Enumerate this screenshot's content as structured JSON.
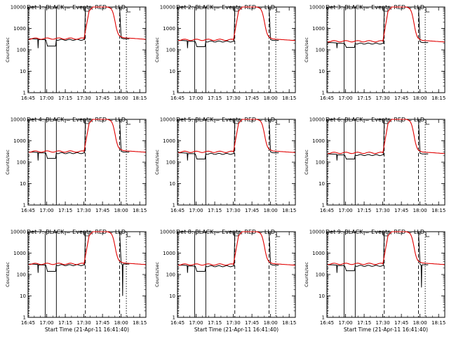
{
  "figure": {
    "background": "#ffffff",
    "axis_color": "#000000",
    "events_color": "#000000",
    "lld_color": "#e00000",
    "ylabel": "Counts/sec",
    "xlabel": "Start Time (21-Apr-11 16:41:40)"
  },
  "chart_data": [
    {
      "type": "line",
      "title": "Det 1: BLACK = Events, RED = LLD",
      "show_xlabel": false,
      "ylim": [
        1,
        10000
      ],
      "yscale": "log",
      "x_ticks": [
        "16:45",
        "17:00",
        "17:15",
        "17:30",
        "17:45",
        "18:00",
        "18:15"
      ],
      "y_ticks": [
        "1",
        "10",
        "100",
        "1000",
        "10000"
      ],
      "events_baseline": 300,
      "lld_baseline": 320,
      "dip_level": 150,
      "spike_level": null
    },
    {
      "type": "line",
      "title": "Det 2: BLACK = Events, RED = LLD",
      "show_xlabel": false,
      "ylim": [
        1,
        10000
      ],
      "yscale": "log",
      "x_ticks": [
        "16:45",
        "17:00",
        "17:15",
        "17:30",
        "17:45",
        "18:00",
        "18:15"
      ],
      "y_ticks": [
        "1",
        "10",
        "100",
        "1000",
        "10000"
      ],
      "events_baseline": 250,
      "lld_baseline": 280,
      "dip_level": 140,
      "spike_level": null
    },
    {
      "type": "line",
      "title": "Det 3: BLACK = Events, RED = LLD",
      "show_xlabel": false,
      "ylim": [
        1,
        10000
      ],
      "yscale": "log",
      "x_ticks": [
        "16:45",
        "17:00",
        "17:15",
        "17:30",
        "17:45",
        "18:00",
        "18:15"
      ],
      "y_ticks": [
        "1",
        "10",
        "100",
        "1000",
        "10000"
      ],
      "events_baseline": 200,
      "lld_baseline": 240,
      "dip_level": 130,
      "spike_level": null
    },
    {
      "type": "line",
      "title": "Det 4: BLACK = Events, RED = LLD",
      "show_xlabel": false,
      "ylim": [
        1,
        10000
      ],
      "yscale": "log",
      "x_ticks": [
        "16:45",
        "17:00",
        "17:15",
        "17:30",
        "17:45",
        "18:00",
        "18:15"
      ],
      "y_ticks": [
        "1",
        "10",
        "100",
        "1000",
        "10000"
      ],
      "events_baseline": 270,
      "lld_baseline": 300,
      "dip_level": 150,
      "spike_level": null
    },
    {
      "type": "line",
      "title": "Det 5: BLACK = Events, RED = LLD",
      "show_xlabel": false,
      "ylim": [
        1,
        10000
      ],
      "yscale": "log",
      "x_ticks": [
        "16:45",
        "17:00",
        "17:15",
        "17:30",
        "17:45",
        "18:00",
        "18:15"
      ],
      "y_ticks": [
        "1",
        "10",
        "100",
        "1000",
        "10000"
      ],
      "events_baseline": 250,
      "lld_baseline": 290,
      "dip_level": 140,
      "spike_level": null
    },
    {
      "type": "line",
      "title": "Det 6: BLACK = Events, RED = LLD",
      "show_xlabel": false,
      "ylim": [
        1,
        10000
      ],
      "yscale": "log",
      "x_ticks": [
        "16:45",
        "17:00",
        "17:15",
        "17:30",
        "17:45",
        "18:00",
        "18:15"
      ],
      "y_ticks": [
        "1",
        "10",
        "100",
        "1000",
        "10000"
      ],
      "events_baseline": 220,
      "lld_baseline": 260,
      "dip_level": 140,
      "spike_level": null
    },
    {
      "type": "line",
      "title": "Det 7: BLACK = Events, RED = LLD",
      "show_xlabel": true,
      "ylim": [
        1,
        10000
      ],
      "yscale": "log",
      "x_ticks": [
        "16:45",
        "17:00",
        "17:15",
        "17:30",
        "17:45",
        "18:00",
        "18:15"
      ],
      "y_ticks": [
        "1",
        "10",
        "100",
        "1000",
        "10000"
      ],
      "events_baseline": 280,
      "lld_baseline": 300,
      "dip_level": 140,
      "spike_level": 10
    },
    {
      "type": "line",
      "title": "Det 8: BLACK = Events, RED = LLD",
      "show_xlabel": true,
      "ylim": [
        1,
        10000
      ],
      "yscale": "log",
      "x_ticks": [
        "16:45",
        "17:00",
        "17:15",
        "17:30",
        "17:45",
        "18:00",
        "18:15"
      ],
      "y_ticks": [
        "1",
        "10",
        "100",
        "1000",
        "10000"
      ],
      "events_baseline": 250,
      "lld_baseline": 280,
      "dip_level": 140,
      "spike_level": null
    },
    {
      "type": "line",
      "title": "Det 9: BLACK = Events, RED = LLD",
      "show_xlabel": true,
      "ylim": [
        1,
        10000
      ],
      "yscale": "log",
      "x_ticks": [
        "16:45",
        "17:00",
        "17:15",
        "17:30",
        "17:45",
        "18:00",
        "18:15"
      ],
      "y_ticks": [
        "1",
        "10",
        "100",
        "1000",
        "10000"
      ],
      "events_baseline": 260,
      "lld_baseline": 300,
      "dip_level": 150,
      "spike_level": 25
    }
  ]
}
